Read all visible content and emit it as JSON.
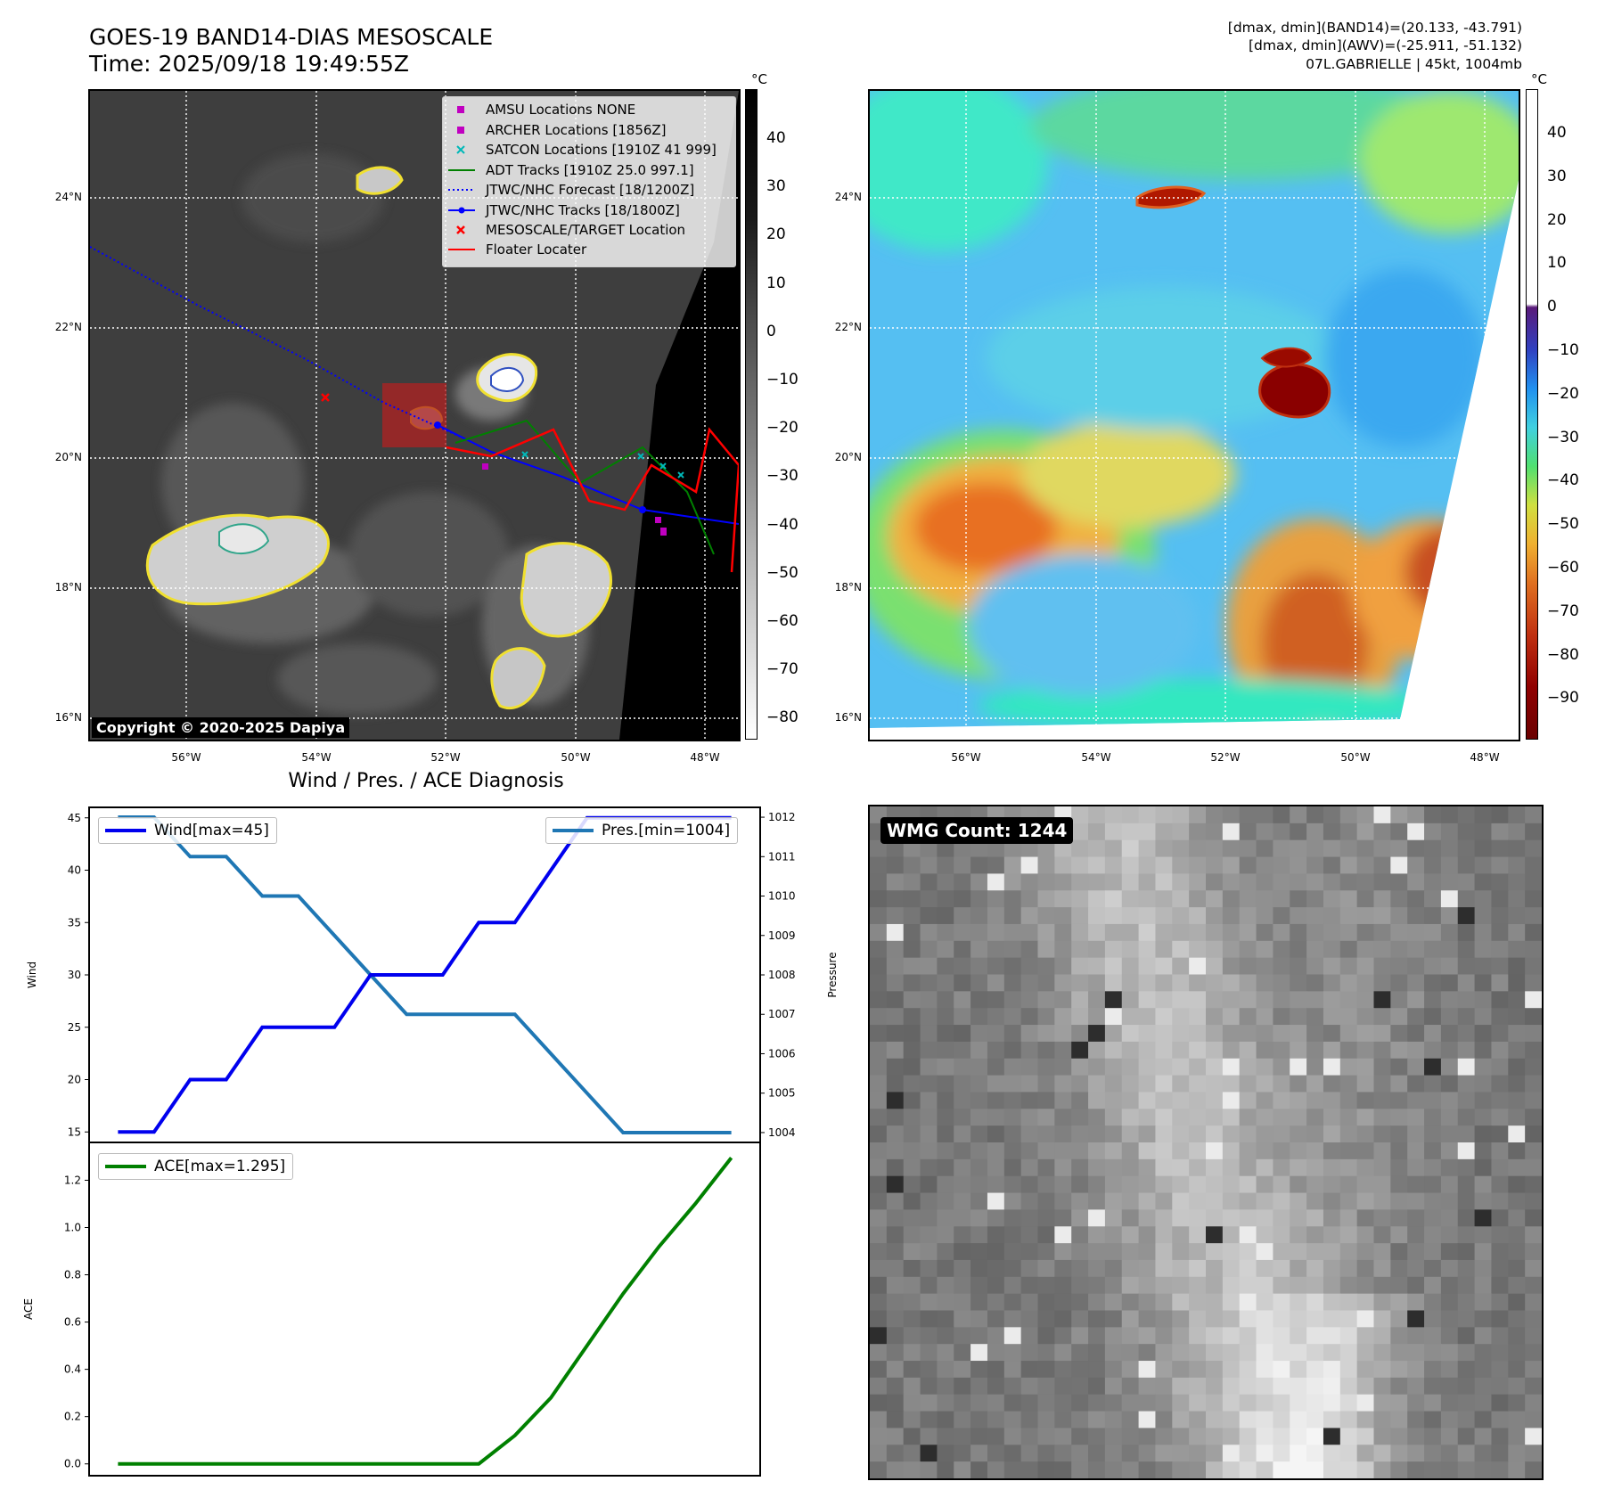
{
  "header": {
    "title_line1": "GOES-19 BAND14-DIAS MESOSCALE",
    "title_line2": "Time: 2025/09/18 19:49:55Z",
    "info_line1": "[dmax, dmin](BAND14)=(20.133, -43.791)",
    "info_line2": "[dmax, dmin](AWV)=(-25.911, -51.132)",
    "info_line3": "07L.GABRIELLE | 45kt, 1004mb"
  },
  "map": {
    "lat_labels": [
      "24°N",
      "22°N",
      "20°N",
      "18°N",
      "16°N"
    ],
    "lon_labels": [
      "56°W",
      "54°W",
      "52°W",
      "50°W",
      "48°W"
    ],
    "copyright": "Copyright © 2020-2025 Dapiya",
    "legend": [
      {
        "label": "AMSU Locations NONE",
        "marker": "square",
        "color": "#c000c0"
      },
      {
        "label": "ARCHER Locations [1856Z]",
        "marker": "square",
        "color": "#c000c0"
      },
      {
        "label": "SATCON Locations [1910Z 41 999]",
        "marker": "x",
        "color": "#00b8b8"
      },
      {
        "label": "ADT Tracks [1910Z 25.0 997.1]",
        "marker": "line",
        "color": "#008000"
      },
      {
        "label": "JTWC/NHC Forecast [18/1200Z]",
        "marker": "dotted",
        "color": "#0000ff"
      },
      {
        "label": "JTWC/NHC Tracks [18/1800Z]",
        "marker": "line-dot",
        "color": "#0000ff"
      },
      {
        "label": "MESOSCALE/TARGET Location",
        "marker": "x",
        "color": "#ff0000"
      },
      {
        "label": "Floater Locater",
        "marker": "line",
        "color": "#ff0000"
      }
    ]
  },
  "colorbar_gray": {
    "unit": "°C",
    "ticks": [
      "40",
      "30",
      "20",
      "10",
      "0",
      "−10",
      "−20",
      "−30",
      "−40",
      "−50",
      "−60",
      "−70",
      "−80"
    ]
  },
  "colorbar_color": {
    "unit": "°C",
    "ticks": [
      "40",
      "30",
      "20",
      "10",
      "0",
      "−10",
      "−20",
      "−30",
      "−40",
      "−50",
      "−60",
      "−70",
      "−80",
      "−90"
    ]
  },
  "diag": {
    "title": "Wind / Pres. / ACE Diagnosis",
    "wind_ylabel": "Wind",
    "pres_ylabel": "Pressure",
    "ace_ylabel": "ACE",
    "wind_legend": "Wind[max=45]",
    "pres_legend": "Pres.[min=1004]",
    "ace_legend": "ACE[max=1.295]",
    "wind_ticks": [
      "45",
      "40",
      "35",
      "30",
      "25",
      "20",
      "15"
    ],
    "pres_ticks": [
      "1012",
      "1011",
      "1010",
      "1009",
      "1008",
      "1007",
      "1006",
      "1005",
      "1004"
    ],
    "ace_ticks": [
      "1.2",
      "1.0",
      "0.8",
      "0.6",
      "0.4",
      "0.2",
      "0.0"
    ]
  },
  "chart_data": [
    {
      "type": "line",
      "title": "Wind / Pres. / ACE Diagnosis",
      "x": [
        0,
        1,
        2,
        3,
        4,
        5,
        6,
        7,
        8,
        9,
        10,
        11,
        12,
        13,
        14,
        15,
        16,
        17
      ],
      "series": [
        {
          "name": "Wind[max=45]",
          "axis": "left",
          "color": "#0000ee",
          "values": [
            15,
            15,
            20,
            20,
            25,
            25,
            25,
            30,
            30,
            30,
            35,
            35,
            40,
            45,
            45,
            45,
            45,
            45
          ]
        },
        {
          "name": "Pres.[min=1004]",
          "axis": "right",
          "color": "#1f77b4",
          "values": [
            1012,
            1012,
            1011,
            1011,
            1010,
            1010,
            1009,
            1008,
            1007,
            1007,
            1007,
            1007,
            1006,
            1005,
            1004,
            1004,
            1004,
            1004
          ]
        }
      ],
      "ylabel": "Wind",
      "ylabel_right": "Pressure",
      "ylim": [
        14,
        46
      ],
      "ylim_right": [
        1003.75,
        1012.25
      ]
    },
    {
      "type": "line",
      "x": [
        0,
        1,
        2,
        3,
        4,
        5,
        6,
        7,
        8,
        9,
        10,
        11,
        12,
        13,
        14,
        15,
        16,
        17
      ],
      "series": [
        {
          "name": "ACE[max=1.295]",
          "color": "#008000",
          "values": [
            0,
            0,
            0,
            0,
            0,
            0,
            0,
            0,
            0,
            0,
            0,
            0.12,
            0.28,
            0.5,
            0.72,
            0.92,
            1.1,
            1.295
          ]
        }
      ],
      "ylabel": "ACE",
      "ylim": [
        -0.05,
        1.36
      ]
    }
  ],
  "wmg": {
    "badge": "WMG Count: 1244"
  }
}
